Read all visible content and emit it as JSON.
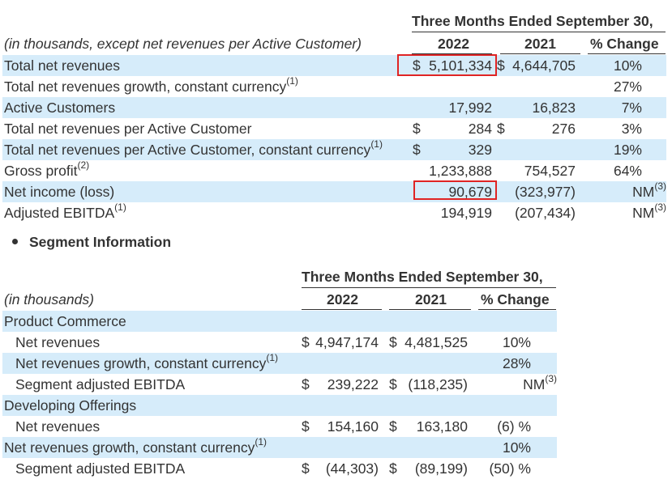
{
  "table1": {
    "period_header": "Three Months Ended September 30,",
    "stub_note": "(in thousands, except net revenues per Active Customer)",
    "col_2022": "2022",
    "col_2021": "2021",
    "col_change": "% Change",
    "rows": [
      {
        "label": "Total net revenues",
        "sup": "",
        "s22": "$",
        "v22": "5,101,334",
        "s21": "$",
        "v21": "4,644,705",
        "chg": "10%",
        "chg_sup": ""
      },
      {
        "label": "Total net revenues growth, constant currency",
        "sup": "(1)",
        "s22": "",
        "v22": "",
        "s21": "",
        "v21": "",
        "chg": "27%",
        "chg_sup": ""
      },
      {
        "label": "Active Customers",
        "sup": "",
        "s22": "",
        "v22": "17,992",
        "s21": "",
        "v21": "16,823",
        "chg": "7%",
        "chg_sup": ""
      },
      {
        "label": "Total net revenues per Active Customer",
        "sup": "",
        "s22": "$",
        "v22": "284",
        "s21": "$",
        "v21": "276",
        "chg": "3%",
        "chg_sup": ""
      },
      {
        "label": "Total net revenues per Active Customer, constant currency",
        "sup": "(1)",
        "s22": "$",
        "v22": "329",
        "s21": "",
        "v21": "",
        "chg": "19%",
        "chg_sup": ""
      },
      {
        "label": "Gross profit",
        "sup": "(2)",
        "s22": "",
        "v22": "1,233,888",
        "s21": "",
        "v21": "754,527",
        "chg": "64%",
        "chg_sup": ""
      },
      {
        "label": "Net income (loss)",
        "sup": "",
        "s22": "",
        "v22": "90,679",
        "s21": "",
        "v21": "(323,977)",
        "chg": "NM",
        "chg_sup": "(3)"
      },
      {
        "label": "Adjusted EBITDA",
        "sup": "(1)",
        "s22": "",
        "v22": "194,919",
        "s21": "",
        "v21": "(207,434)",
        "chg": "NM",
        "chg_sup": "(3)"
      }
    ]
  },
  "section": {
    "bullet_title": "Segment Information"
  },
  "table2": {
    "period_header": "Three Months Ended September 30,",
    "stub_note": "(in thousands)",
    "col_2022": "2022",
    "col_2021": "2021",
    "col_change": "% Change",
    "rows": [
      {
        "label": "Product Commerce",
        "indent": false,
        "group": true,
        "sup": "",
        "s22": "",
        "v22": "",
        "s21": "",
        "v21": "",
        "chg": "",
        "chg_sup": ""
      },
      {
        "label": "Net revenues",
        "indent": true,
        "sup": "",
        "s22": "$",
        "v22": "4,947,174",
        "s21": "$",
        "v21": "4,481,525",
        "chg": "10%",
        "chg_sup": ""
      },
      {
        "label": "Net revenues growth, constant currency",
        "indent": true,
        "sup": "(1)",
        "s22": "",
        "v22": "",
        "s21": "",
        "v21": "",
        "chg": "28%",
        "chg_sup": ""
      },
      {
        "label": "Segment adjusted EBITDA",
        "indent": true,
        "sup": "",
        "s22": "$",
        "v22": "239,222",
        "s21": "$",
        "v21": "(118,235)",
        "chg": "NM",
        "chg_sup": "(3)"
      },
      {
        "label": "Developing Offerings",
        "indent": false,
        "group": true,
        "sup": "",
        "s22": "",
        "v22": "",
        "s21": "",
        "v21": "",
        "chg": "",
        "chg_sup": ""
      },
      {
        "label": "Net revenues",
        "indent": true,
        "sup": "",
        "s22": "$",
        "v22": "154,160",
        "s21": "$",
        "v21": "163,180",
        "chg": "(6) %",
        "chg_sup": ""
      },
      {
        "label": "Net revenues growth, constant currency",
        "indent": false,
        "sup": "(1)",
        "s22": "",
        "v22": "",
        "s21": "",
        "v21": "",
        "chg": "10%",
        "chg_sup": ""
      },
      {
        "label": "Segment adjusted EBITDA",
        "indent": true,
        "sup": "",
        "s22": "$",
        "v22": "(44,303)",
        "s21": "$",
        "v21": "(89,199)",
        "chg": "(50) %",
        "chg_sup": ""
      }
    ]
  },
  "highlight_color": "#d6ecfa",
  "annotation_color": "#e02424"
}
